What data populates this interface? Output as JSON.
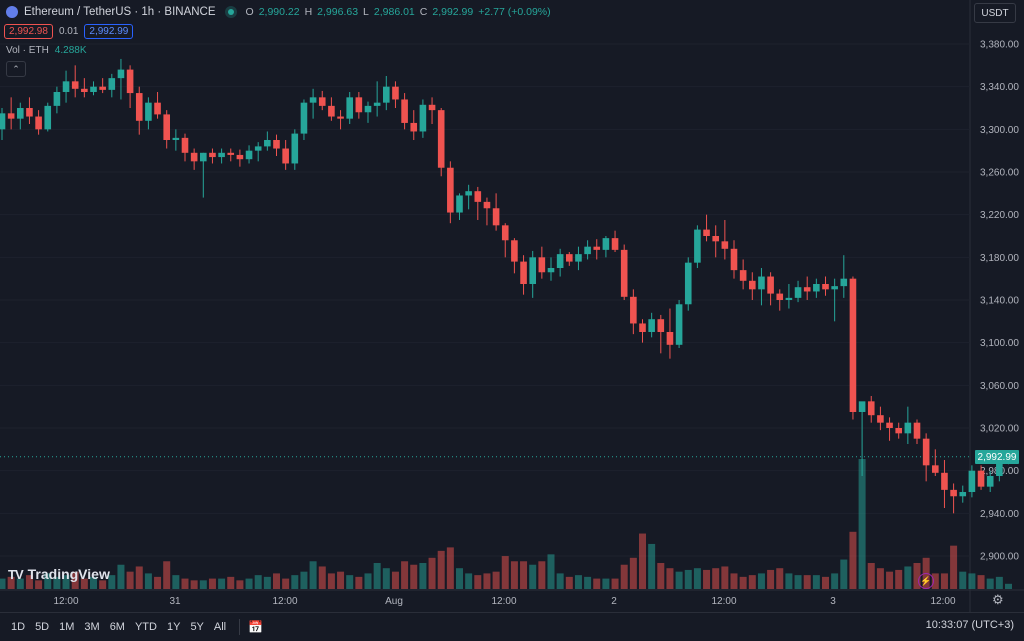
{
  "header": {
    "title": "Ethereum / TetherUS · 1h · BINANCE",
    "ohlc": [
      {
        "key": "O",
        "value": "2,990.22"
      },
      {
        "key": "H",
        "value": "2,996.63"
      },
      {
        "key": "L",
        "value": "2,986.01"
      },
      {
        "key": "C",
        "value": "2,992.99"
      }
    ],
    "change": "+2.77 (+0.09%)",
    "sell_price": "2,992.98",
    "spread": "0.01",
    "buy_price": "2,992.99",
    "volume_label": "Vol · ETH",
    "volume_value": "4.288K",
    "currency": "USDT"
  },
  "colors": {
    "up": "#26a69a",
    "down": "#ef5350",
    "background": "#161a25",
    "grid": "#1e222d"
  },
  "chart_data": {
    "type": "candlestick",
    "symbol": "ETHUSDT",
    "interval": "1h",
    "last_price_label": "2,992.99",
    "y_ticks": [
      "3,380.00",
      "3,340.00",
      "3,300.00",
      "3,260.00",
      "3,220.00",
      "3,180.00",
      "3,140.00",
      "3,100.00",
      "3,060.00",
      "3,020.00",
      "2,980.00",
      "2,940.00",
      "2,900.00"
    ],
    "ylim": [
      2875,
      3395
    ],
    "x_ticks": [
      "12:00",
      "31",
      "12:00",
      "Aug",
      "12:00",
      "2",
      "12:00",
      "3",
      "12:00"
    ],
    "candles_ohlc": [
      [
        3300,
        3320,
        3290,
        3315
      ],
      [
        3315,
        3330,
        3300,
        3310
      ],
      [
        3310,
        3325,
        3300,
        3320
      ],
      [
        3320,
        3330,
        3305,
        3312
      ],
      [
        3312,
        3318,
        3295,
        3300
      ],
      [
        3300,
        3325,
        3298,
        3322
      ],
      [
        3322,
        3340,
        3315,
        3335
      ],
      [
        3335,
        3355,
        3325,
        3345
      ],
      [
        3345,
        3360,
        3330,
        3338
      ],
      [
        3338,
        3348,
        3330,
        3335
      ],
      [
        3335,
        3345,
        3332,
        3340
      ],
      [
        3340,
        3348,
        3334,
        3337
      ],
      [
        3337,
        3352,
        3330,
        3348
      ],
      [
        3348,
        3366,
        3328,
        3356
      ],
      [
        3356,
        3360,
        3320,
        3334
      ],
      [
        3334,
        3340,
        3295,
        3308
      ],
      [
        3308,
        3330,
        3300,
        3325
      ],
      [
        3325,
        3335,
        3310,
        3314
      ],
      [
        3314,
        3318,
        3282,
        3290
      ],
      [
        3290,
        3300,
        3280,
        3292
      ],
      [
        3292,
        3296,
        3270,
        3278
      ],
      [
        3278,
        3282,
        3262,
        3270
      ],
      [
        3270,
        3278,
        3236,
        3278
      ],
      [
        3278,
        3282,
        3268,
        3274
      ],
      [
        3274,
        3282,
        3268,
        3278
      ],
      [
        3278,
        3282,
        3270,
        3276
      ],
      [
        3276,
        3281,
        3265,
        3272
      ],
      [
        3272,
        3285,
        3268,
        3280
      ],
      [
        3280,
        3288,
        3270,
        3284
      ],
      [
        3284,
        3298,
        3280,
        3290
      ],
      [
        3290,
        3295,
        3275,
        3282
      ],
      [
        3282,
        3290,
        3262,
        3268
      ],
      [
        3268,
        3300,
        3262,
        3296
      ],
      [
        3296,
        3328,
        3290,
        3325
      ],
      [
        3325,
        3338,
        3310,
        3330
      ],
      [
        3330,
        3336,
        3318,
        3322
      ],
      [
        3322,
        3330,
        3308,
        3312
      ],
      [
        3312,
        3318,
        3300,
        3310
      ],
      [
        3310,
        3335,
        3305,
        3330
      ],
      [
        3330,
        3335,
        3310,
        3316
      ],
      [
        3316,
        3326,
        3306,
        3322
      ],
      [
        3322,
        3345,
        3312,
        3325
      ],
      [
        3325,
        3350,
        3318,
        3340
      ],
      [
        3340,
        3345,
        3320,
        3328
      ],
      [
        3328,
        3334,
        3300,
        3306
      ],
      [
        3306,
        3318,
        3290,
        3298
      ],
      [
        3298,
        3328,
        3292,
        3323
      ],
      [
        3323,
        3330,
        3305,
        3318
      ],
      [
        3318,
        3320,
        3256,
        3264
      ],
      [
        3264,
        3270,
        3212,
        3222
      ],
      [
        3222,
        3240,
        3215,
        3238
      ],
      [
        3238,
        3248,
        3225,
        3242
      ],
      [
        3242,
        3246,
        3215,
        3232
      ],
      [
        3232,
        3236,
        3210,
        3226
      ],
      [
        3226,
        3240,
        3205,
        3210
      ],
      [
        3210,
        3212,
        3180,
        3196
      ],
      [
        3196,
        3198,
        3165,
        3176
      ],
      [
        3176,
        3182,
        3145,
        3155
      ],
      [
        3155,
        3186,
        3142,
        3180
      ],
      [
        3180,
        3190,
        3160,
        3166
      ],
      [
        3166,
        3180,
        3158,
        3170
      ],
      [
        3170,
        3188,
        3162,
        3183
      ],
      [
        3183,
        3185,
        3172,
        3176
      ],
      [
        3176,
        3190,
        3168,
        3183
      ],
      [
        3183,
        3196,
        3178,
        3190
      ],
      [
        3190,
        3197,
        3178,
        3187
      ],
      [
        3187,
        3200,
        3180,
        3198
      ],
      [
        3198,
        3205,
        3185,
        3187
      ],
      [
        3187,
        3192,
        3140,
        3143
      ],
      [
        3143,
        3150,
        3108,
        3118
      ],
      [
        3118,
        3122,
        3100,
        3110
      ],
      [
        3110,
        3128,
        3105,
        3122
      ],
      [
        3122,
        3126,
        3090,
        3110
      ],
      [
        3110,
        3132,
        3085,
        3098
      ],
      [
        3098,
        3140,
        3095,
        3136
      ],
      [
        3136,
        3180,
        3130,
        3175
      ],
      [
        3175,
        3210,
        3170,
        3206
      ],
      [
        3206,
        3220,
        3195,
        3200
      ],
      [
        3200,
        3210,
        3180,
        3195
      ],
      [
        3195,
        3215,
        3178,
        3188
      ],
      [
        3188,
        3196,
        3160,
        3168
      ],
      [
        3168,
        3178,
        3150,
        3158
      ],
      [
        3158,
        3166,
        3140,
        3150
      ],
      [
        3150,
        3170,
        3135,
        3162
      ],
      [
        3162,
        3166,
        3135,
        3146
      ],
      [
        3146,
        3150,
        3130,
        3140
      ],
      [
        3140,
        3155,
        3132,
        3142
      ],
      [
        3142,
        3158,
        3138,
        3152
      ],
      [
        3152,
        3162,
        3140,
        3148
      ],
      [
        3148,
        3160,
        3142,
        3155
      ],
      [
        3155,
        3162,
        3144,
        3150
      ],
      [
        3150,
        3160,
        3120,
        3153
      ],
      [
        3153,
        3182,
        3142,
        3160
      ],
      [
        3160,
        3162,
        3028,
        3035
      ],
      [
        3035,
        3040,
        2975,
        3045
      ],
      [
        3045,
        3050,
        3025,
        3032
      ],
      [
        3032,
        3040,
        3018,
        3025
      ],
      [
        3025,
        3030,
        3008,
        3020
      ],
      [
        3020,
        3025,
        3010,
        3015
      ],
      [
        3015,
        3040,
        3005,
        3025
      ],
      [
        3025,
        3028,
        3005,
        3010
      ],
      [
        3010,
        3015,
        2970,
        2985
      ],
      [
        2985,
        3000,
        2975,
        2978
      ],
      [
        2978,
        2990,
        2945,
        2962
      ],
      [
        2962,
        2968,
        2940,
        2956
      ],
      [
        2956,
        2966,
        2950,
        2960
      ],
      [
        2960,
        2985,
        2955,
        2980
      ],
      [
        2980,
        2985,
        2962,
        2965
      ],
      [
        2965,
        2980,
        2960,
        2975
      ],
      [
        2975,
        2992,
        2970,
        2988
      ],
      [
        2990.22,
        2996.63,
        2986.01,
        2992.99
      ]
    ],
    "volume": [
      0.6,
      0.7,
      0.6,
      0.8,
      0.5,
      0.9,
      0.7,
      0.8,
      1.0,
      0.6,
      0.7,
      0.5,
      0.8,
      1.4,
      1.0,
      1.3,
      0.9,
      0.7,
      1.6,
      0.8,
      0.6,
      0.5,
      0.5,
      0.6,
      0.6,
      0.7,
      0.5,
      0.6,
      0.8,
      0.7,
      0.9,
      0.6,
      0.8,
      1.0,
      1.6,
      1.3,
      0.9,
      1.0,
      0.8,
      0.7,
      0.9,
      1.5,
      1.2,
      1.0,
      1.6,
      1.4,
      1.5,
      1.8,
      2.2,
      2.4,
      1.2,
      0.9,
      0.8,
      0.9,
      1.0,
      1.9,
      1.6,
      1.6,
      1.4,
      1.6,
      2.0,
      0.9,
      0.7,
      0.8,
      0.7,
      0.6,
      0.6,
      0.6,
      1.4,
      1.8,
      3.2,
      2.6,
      1.5,
      1.2,
      1.0,
      1.1,
      1.2,
      1.1,
      1.2,
      1.3,
      0.9,
      0.7,
      0.8,
      0.9,
      1.1,
      1.2,
      0.9,
      0.8,
      0.8,
      0.8,
      0.7,
      0.9,
      1.7,
      3.3,
      7.5,
      1.5,
      1.2,
      1.0,
      1.1,
      1.3,
      1.5,
      1.8,
      0.9,
      0.9,
      2.5,
      1.0,
      0.9,
      0.8,
      0.6,
      0.7,
      0.3
    ]
  },
  "toolbar": {
    "timeframes": [
      "1D",
      "5D",
      "1M",
      "3M",
      "6M",
      "YTD",
      "1Y",
      "5Y",
      "All"
    ],
    "clock": "10:33:07 (UTC+3)"
  },
  "branding": {
    "logo_text": "TradingView",
    "logo_mark": "TV"
  }
}
